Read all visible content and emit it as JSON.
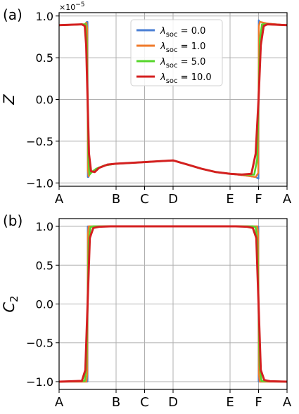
{
  "colors": {
    "series": [
      "#4a7fd4",
      "#f07a2a",
      "#55d62a",
      "#d42020"
    ],
    "grid": "#b0b0b0",
    "axes": "#000000",
    "shade": "#9b9bb5"
  },
  "chart_data": [
    {
      "type": "line",
      "panel_label": "(a)",
      "ylabel_main": "Z",
      "ylabel_sub": "",
      "offset_text": "×10",
      "offset_exp": "−5",
      "x_ticks": [
        "A",
        "B",
        "C",
        "D",
        "E",
        "F",
        "A"
      ],
      "x_tick_values": [
        0,
        2,
        3,
        4,
        6,
        7,
        8
      ],
      "xlim": [
        0,
        8
      ],
      "ylim": [
        -1.04,
        1.04
      ],
      "y_ticks": [
        -1.0,
        -0.5,
        0.0,
        0.5,
        1.0
      ],
      "y_tick_labels": [
        "−1.0",
        "−0.5",
        "0.0",
        "0.5",
        "1.0"
      ],
      "grid": true,
      "legend": {
        "placement": "top-center",
        "symbol": "λ",
        "subscript": "soc"
      },
      "series": [
        {
          "name": "0.0",
          "values": [
            [
              0,
              0.89
            ],
            [
              0.9,
              0.9
            ],
            [
              0.97,
              0.93
            ],
            [
              1.0,
              0.93
            ],
            [
              1.005,
              -0.93
            ],
            [
              1.03,
              -0.93
            ],
            [
              1.1,
              -0.88
            ],
            [
              1.3,
              -0.83
            ],
            [
              1.6,
              -0.79
            ],
            [
              2.0,
              -0.77
            ],
            [
              2.5,
              -0.76
            ],
            [
              3.0,
              -0.75
            ],
            [
              3.5,
              -0.74
            ],
            [
              4.0,
              -0.73
            ],
            [
              4.5,
              -0.78
            ],
            [
              5.0,
              -0.83
            ],
            [
              5.5,
              -0.87
            ],
            [
              6.0,
              -0.89
            ],
            [
              6.5,
              -0.91
            ],
            [
              6.9,
              -0.93
            ],
            [
              7.0,
              -0.95
            ],
            [
              7.005,
              0.95
            ],
            [
              7.05,
              0.93
            ],
            [
              7.3,
              0.91
            ],
            [
              8.0,
              0.89
            ]
          ]
        },
        {
          "name": "1.0",
          "values": [
            [
              0,
              0.89
            ],
            [
              0.9,
              0.9
            ],
            [
              0.96,
              0.92
            ],
            [
              0.99,
              0.85
            ],
            [
              1.0,
              0.0
            ],
            [
              1.01,
              -0.85
            ],
            [
              1.04,
              -0.92
            ],
            [
              1.1,
              -0.88
            ],
            [
              1.3,
              -0.83
            ],
            [
              1.6,
              -0.79
            ],
            [
              2.0,
              -0.77
            ],
            [
              2.5,
              -0.76
            ],
            [
              3.0,
              -0.75
            ],
            [
              3.5,
              -0.74
            ],
            [
              4.0,
              -0.73
            ],
            [
              4.5,
              -0.78
            ],
            [
              5.0,
              -0.83
            ],
            [
              5.5,
              -0.87
            ],
            [
              6.0,
              -0.89
            ],
            [
              6.5,
              -0.91
            ],
            [
              6.9,
              -0.93
            ],
            [
              6.99,
              -0.88
            ],
            [
              7.0,
              0.0
            ],
            [
              7.01,
              0.88
            ],
            [
              7.05,
              0.93
            ],
            [
              7.3,
              0.91
            ],
            [
              8.0,
              0.89
            ]
          ]
        },
        {
          "name": "5.0",
          "values": [
            [
              0,
              0.89
            ],
            [
              0.85,
              0.9
            ],
            [
              0.93,
              0.9
            ],
            [
              0.97,
              0.72
            ],
            [
              1.0,
              0.0
            ],
            [
              1.03,
              -0.72
            ],
            [
              1.07,
              -0.9
            ],
            [
              1.15,
              -0.87
            ],
            [
              1.3,
              -0.83
            ],
            [
              1.6,
              -0.79
            ],
            [
              2.0,
              -0.77
            ],
            [
              2.5,
              -0.76
            ],
            [
              3.0,
              -0.75
            ],
            [
              3.5,
              -0.74
            ],
            [
              4.0,
              -0.73
            ],
            [
              4.5,
              -0.78
            ],
            [
              5.0,
              -0.83
            ],
            [
              5.5,
              -0.87
            ],
            [
              6.0,
              -0.89
            ],
            [
              6.5,
              -0.9
            ],
            [
              6.85,
              -0.9
            ],
            [
              6.95,
              -0.72
            ],
            [
              7.0,
              0.0
            ],
            [
              7.05,
              0.72
            ],
            [
              7.12,
              0.9
            ],
            [
              7.3,
              0.9
            ],
            [
              8.0,
              0.89
            ]
          ]
        },
        {
          "name": "10.0",
          "values": [
            [
              0,
              0.89
            ],
            [
              0.8,
              0.9
            ],
            [
              0.9,
              0.88
            ],
            [
              0.95,
              0.65
            ],
            [
              1.0,
              0.0
            ],
            [
              1.05,
              -0.65
            ],
            [
              1.12,
              -0.86
            ],
            [
              1.25,
              -0.87
            ],
            [
              1.4,
              -0.82
            ],
            [
              1.7,
              -0.78
            ],
            [
              2.0,
              -0.77
            ],
            [
              2.5,
              -0.76
            ],
            [
              3.0,
              -0.75
            ],
            [
              3.5,
              -0.74
            ],
            [
              4.0,
              -0.73
            ],
            [
              4.5,
              -0.78
            ],
            [
              5.0,
              -0.83
            ],
            [
              5.5,
              -0.87
            ],
            [
              6.0,
              -0.89
            ],
            [
              6.4,
              -0.9
            ],
            [
              6.75,
              -0.89
            ],
            [
              6.9,
              -0.65
            ],
            [
              7.0,
              0.0
            ],
            [
              7.08,
              0.65
            ],
            [
              7.18,
              0.88
            ],
            [
              7.3,
              0.9
            ],
            [
              8.0,
              0.89
            ]
          ]
        }
      ]
    },
    {
      "type": "line",
      "panel_label": "(b)",
      "ylabel_main": "C",
      "ylabel_sub": "2",
      "offset_text": "",
      "offset_exp": "",
      "x_ticks": [
        "A",
        "B",
        "C",
        "D",
        "E",
        "F",
        "A"
      ],
      "x_tick_values": [
        0,
        2,
        3,
        4,
        6,
        7,
        8
      ],
      "xlim": [
        0,
        8
      ],
      "ylim": [
        -1.1,
        1.1
      ],
      "y_ticks": [
        -1.0,
        -0.5,
        0.0,
        0.5,
        1.0
      ],
      "y_tick_labels": [
        "−1.0",
        "−0.5",
        "0.0",
        "0.5",
        "1.0"
      ],
      "grid": true,
      "series": [
        {
          "name": "0.0",
          "values": [
            [
              0,
              -1.0
            ],
            [
              1.0,
              -1.0
            ],
            [
              1.002,
              1.0
            ],
            [
              6.998,
              1.0
            ],
            [
              7.0,
              -1.0
            ],
            [
              8.0,
              -1.0
            ]
          ]
        },
        {
          "name": "1.0",
          "values": [
            [
              0,
              -1.0
            ],
            [
              0.96,
              -1.0
            ],
            [
              0.99,
              -0.9
            ],
            [
              1.0,
              0.0
            ],
            [
              1.01,
              0.9
            ],
            [
              1.04,
              1.0
            ],
            [
              6.96,
              1.0
            ],
            [
              6.99,
              0.9
            ],
            [
              7.0,
              0.0
            ],
            [
              7.01,
              -0.9
            ],
            [
              7.04,
              -1.0
            ],
            [
              8.0,
              -1.0
            ]
          ]
        },
        {
          "name": "5.0",
          "values": [
            [
              0,
              -1.0
            ],
            [
              0.9,
              -0.99
            ],
            [
              0.96,
              -0.8
            ],
            [
              1.0,
              0.0
            ],
            [
              1.04,
              0.8
            ],
            [
              1.1,
              0.99
            ],
            [
              1.2,
              1.0
            ],
            [
              6.8,
              1.0
            ],
            [
              6.9,
              0.99
            ],
            [
              6.96,
              0.8
            ],
            [
              7.0,
              0.0
            ],
            [
              7.04,
              -0.8
            ],
            [
              7.1,
              -0.99
            ],
            [
              8.0,
              -1.0
            ]
          ]
        },
        {
          "name": "10.0",
          "values": [
            [
              0,
              -1.0
            ],
            [
              0.8,
              -0.99
            ],
            [
              0.92,
              -0.85
            ],
            [
              1.0,
              0.0
            ],
            [
              1.08,
              0.85
            ],
            [
              1.2,
              0.98
            ],
            [
              1.4,
              0.995
            ],
            [
              1.8,
              1.0
            ],
            [
              6.2,
              1.0
            ],
            [
              6.6,
              0.995
            ],
            [
              6.8,
              0.98
            ],
            [
              6.92,
              0.85
            ],
            [
              7.0,
              0.0
            ],
            [
              7.08,
              -0.85
            ],
            [
              7.2,
              -0.98
            ],
            [
              7.4,
              -0.995
            ],
            [
              8.0,
              -1.0
            ]
          ]
        }
      ]
    }
  ]
}
